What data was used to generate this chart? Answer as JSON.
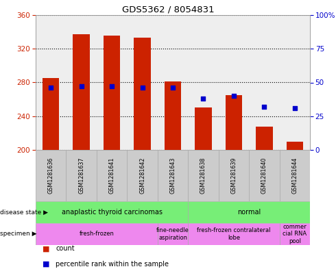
{
  "title": "GDS5362 / 8054831",
  "samples": [
    "GSM1281636",
    "GSM1281637",
    "GSM1281641",
    "GSM1281642",
    "GSM1281643",
    "GSM1281638",
    "GSM1281639",
    "GSM1281640",
    "GSM1281644"
  ],
  "counts": [
    285,
    337,
    336,
    333,
    281,
    250,
    265,
    228,
    210
  ],
  "percentile_ranks": [
    46,
    47,
    47,
    46,
    46,
    38,
    40,
    32,
    31
  ],
  "ylim_left": [
    200,
    360
  ],
  "ylim_right": [
    0,
    100
  ],
  "yticks_left": [
    200,
    240,
    280,
    320,
    360
  ],
  "yticks_right": [
    0,
    25,
    50,
    75,
    100
  ],
  "bar_color": "#cc2200",
  "dot_color": "#0000cc",
  "bar_width": 0.55,
  "ds_groups": [
    {
      "label": "anaplastic thyroid carcinomas",
      "start": 0,
      "end": 5,
      "color": "#77ee77"
    },
    {
      "label": "normal",
      "start": 5,
      "end": 9,
      "color": "#77ee77"
    }
  ],
  "sp_groups": [
    {
      "label": "fresh-frozen",
      "start": 0,
      "end": 4,
      "color": "#ee88ee"
    },
    {
      "label": "fine-needle\naspiration",
      "start": 4,
      "end": 5,
      "color": "#ee88ee"
    },
    {
      "label": "fresh-frozen contralateral\nlobe",
      "start": 5,
      "end": 8,
      "color": "#ee88ee"
    },
    {
      "label": "commer\ncial RNA\npool",
      "start": 8,
      "end": 9,
      "color": "#ee88ee"
    }
  ],
  "left_label_color": "#cc2200",
  "right_label_color": "#0000cc",
  "background_color": "#ffffff",
  "plot_bg_color": "#eeeeee"
}
